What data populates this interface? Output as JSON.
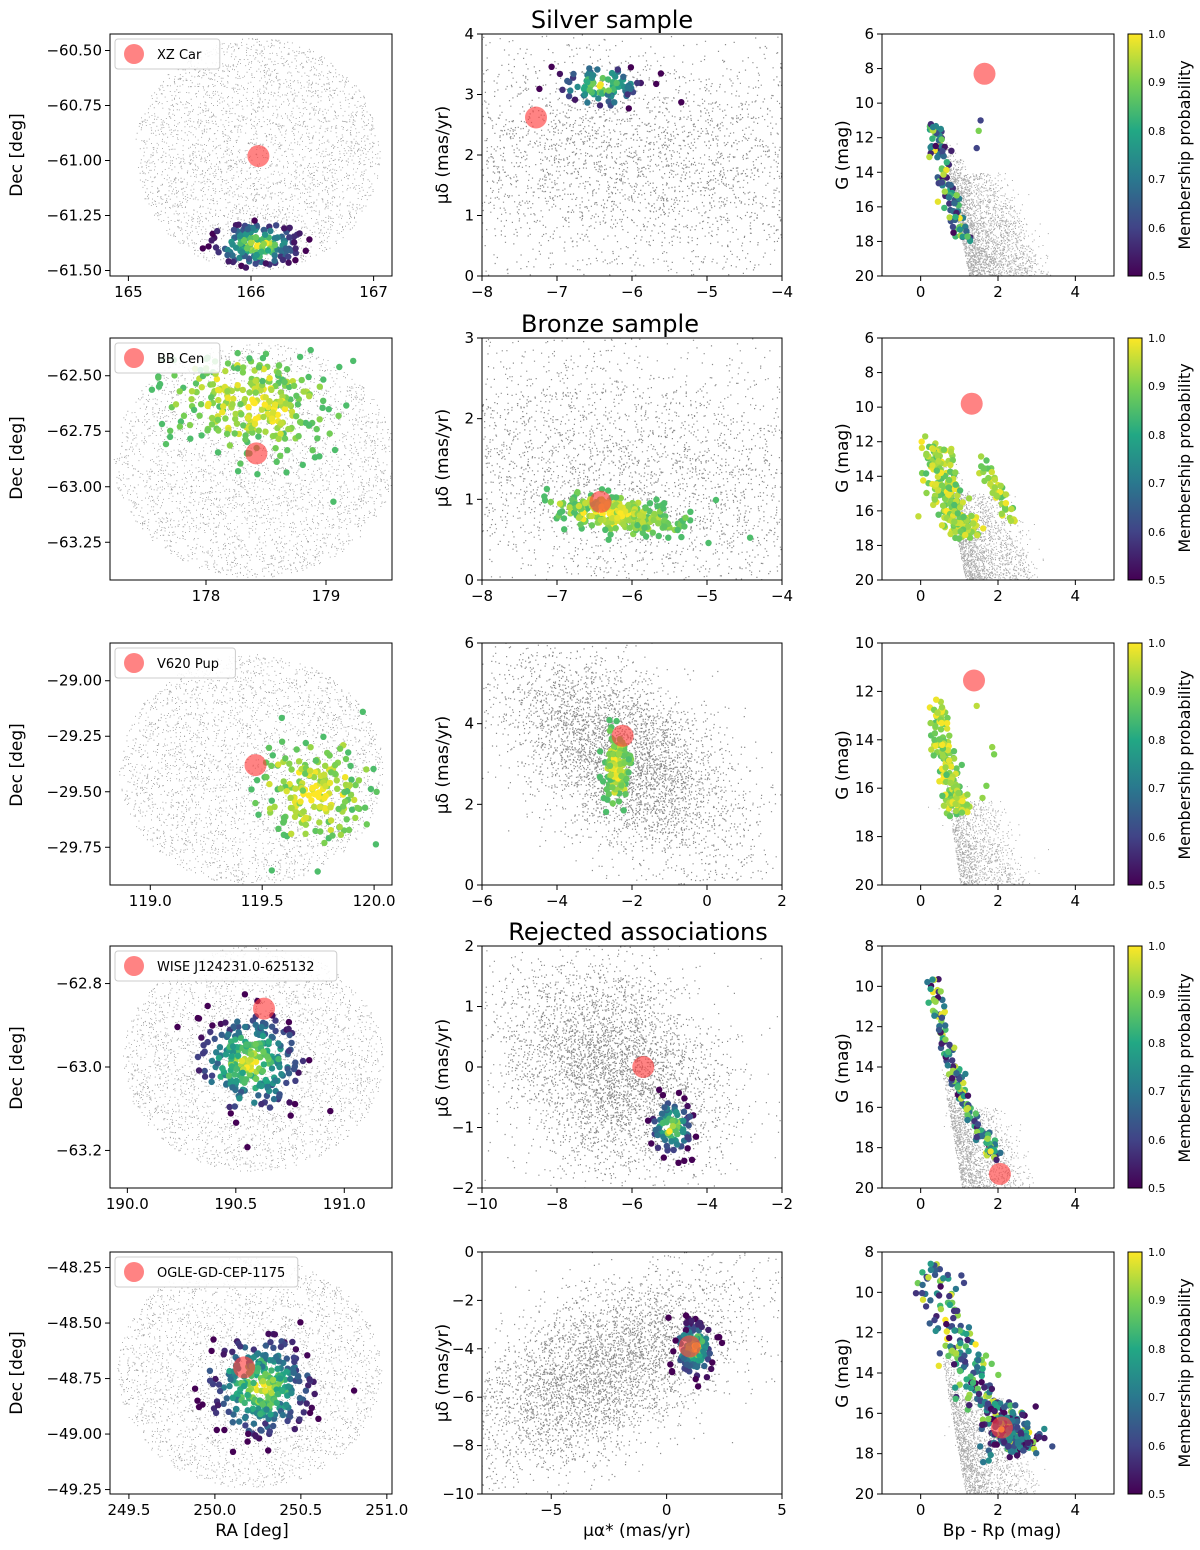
{
  "colorbar": {
    "label": "Membership probability",
    "ticks": [
      "0.5",
      "0.6",
      "0.7",
      "0.8",
      "0.9",
      "1.0"
    ],
    "range": [
      0.5,
      1.0
    ],
    "colormap": [
      "#440154",
      "#414487",
      "#2a788e",
      "#22a884",
      "#7ad151",
      "#fde725"
    ]
  },
  "colors": {
    "field": "#8c8c8c",
    "cepheid": "#ff4040",
    "legend_border": "#cccccc"
  },
  "section_titles": [
    "Silver sample",
    "Bronze sample",
    "Rejected associations"
  ],
  "axis_text": {
    "dec_label": "Dec [deg]",
    "ra_label": "RA [deg]",
    "pmdec_label": "μδ (mas/yr)",
    "pmra_label": "μα* (mas/yr)",
    "g_label": "G (mag)",
    "color_label": "Bp - Rp (mag)"
  },
  "chart_data": [
    {
      "type": "scatter",
      "panel": "sky",
      "legend": "XZ Car",
      "legend_position": "upper-left",
      "xlim": [
        164.85,
        167.15
      ],
      "ylim": [
        -61.525,
        -60.425
      ],
      "xticks": [
        165,
        166,
        167
      ],
      "xticklabels": [
        "165",
        "166",
        "167"
      ],
      "yticks": [
        -60.5,
        -60.75,
        -61.0,
        -61.25,
        -61.5
      ],
      "yticklabels": [
        "−60.50",
        "−60.75",
        "−61.00",
        "−61.25",
        "−61.50"
      ],
      "field_center": [
        166.05,
        -60.97
      ],
      "field_radii": [
        1.0,
        0.53
      ],
      "cepheid": [
        166.06,
        -60.98
      ],
      "members": {
        "center": [
          166.05,
          -61.38
        ],
        "spread": [
          0.18,
          0.05
        ],
        "count": 160,
        "prob_range": [
          0.5,
          1.0
        ],
        "shape": "cluster"
      }
    },
    {
      "type": "scatter",
      "panel": "pm",
      "xlim": [
        -8,
        -4
      ],
      "ylim": [
        0,
        4
      ],
      "xticks": [
        -8,
        -7,
        -6,
        -5,
        -4
      ],
      "xticklabels": [
        "−8",
        "−7",
        "−6",
        "−5",
        "−4"
      ],
      "yticks": [
        0,
        1,
        2,
        3,
        4
      ],
      "yticklabels": [
        "0",
        "1",
        "2",
        "3",
        "4"
      ],
      "field_center": [
        -6.0,
        1.9
      ],
      "field_spread": [
        2.2,
        1.0
      ],
      "field_corr": -0.2,
      "cepheid": [
        -7.28,
        2.62
      ],
      "members": {
        "center": [
          -6.4,
          3.15
        ],
        "spread": [
          0.28,
          0.17
        ],
        "count": 90,
        "prob_range": [
          0.5,
          1.0
        ],
        "shape": "cluster"
      }
    },
    {
      "type": "scatter",
      "panel": "cmd",
      "xlim": [
        -1,
        5
      ],
      "ylim": [
        20,
        6
      ],
      "xticks": [
        0,
        2,
        4
      ],
      "xticklabels": [
        "0",
        "2",
        "4"
      ],
      "yticks": [
        6,
        8,
        10,
        12,
        14,
        16,
        18,
        20
      ],
      "yticklabels": [
        "6",
        "8",
        "10",
        "12",
        "14",
        "16",
        "18",
        "20"
      ],
      "field_bright": 10,
      "cepheid": [
        1.65,
        8.3
      ],
      "members": {
        "seq": [
          [
            0.32,
            11.3
          ],
          [
            0.5,
            13.2
          ],
          [
            0.8,
            15.8
          ],
          [
            1.15,
            18.0
          ]
        ],
        "width": 0.12,
        "count": 110,
        "prob_range": [
          0.5,
          1.0
        ],
        "shape": "sequence",
        "extra": [
          [
            1.5,
            11.6,
            0.9
          ],
          [
            1.55,
            11.0,
            0.6
          ],
          [
            1.45,
            12.6,
            0.6
          ]
        ]
      }
    },
    {
      "type": "scatter",
      "panel": "sky",
      "legend": "BB Cen",
      "legend_position": "upper-left",
      "xlim": [
        177.2,
        179.55
      ],
      "ylim": [
        -63.42,
        -62.33
      ],
      "xticks": [
        178,
        179
      ],
      "xticklabels": [
        "178",
        "179"
      ],
      "yticks": [
        -62.5,
        -62.75,
        -63.0,
        -63.25
      ],
      "yticklabels": [
        "−62.50",
        "−62.75",
        "−63.00",
        "−63.25"
      ],
      "field_center": [
        178.4,
        -62.88
      ],
      "field_radii": [
        1.17,
        0.53
      ],
      "cepheid": [
        178.42,
        -62.85
      ],
      "members": {
        "center": [
          178.4,
          -62.63
        ],
        "spread": [
          0.32,
          0.12
        ],
        "count": 290,
        "prob_range": [
          0.85,
          1.0
        ],
        "shape": "cluster"
      }
    },
    {
      "type": "scatter",
      "panel": "pm",
      "xlim": [
        -8,
        -4
      ],
      "ylim": [
        0,
        3
      ],
      "xticks": [
        -8,
        -7,
        -6,
        -5,
        -4
      ],
      "xticklabels": [
        "−8",
        "−7",
        "−6",
        "−5",
        "−4"
      ],
      "yticks": [
        0,
        1,
        2,
        3
      ],
      "yticklabels": [
        "0",
        "1",
        "2",
        "3"
      ],
      "field_center": [
        -6.0,
        1.3
      ],
      "field_spread": [
        2.2,
        0.85
      ],
      "field_corr": -0.25,
      "cepheid": [
        -6.42,
        0.97
      ],
      "members": {
        "center": [
          -6.2,
          0.82
        ],
        "spread": [
          0.42,
          0.12
        ],
        "count": 300,
        "prob_range": [
          0.85,
          1.0
        ],
        "shape": "cluster",
        "corr": -0.45
      }
    },
    {
      "type": "scatter",
      "panel": "cmd",
      "xlim": [
        -1,
        5
      ],
      "ylim": [
        20,
        6
      ],
      "xticks": [
        0,
        2,
        4
      ],
      "xticklabels": [
        "0",
        "2",
        "4"
      ],
      "yticks": [
        6,
        8,
        10,
        12,
        14,
        16,
        18,
        20
      ],
      "yticklabels": [
        "6",
        "8",
        "10",
        "12",
        "14",
        "16",
        "18",
        "20"
      ],
      "field_bright": 11,
      "cepheid": [
        1.32,
        9.8
      ],
      "members": {
        "seq": [
          [
            0.3,
            11.8
          ],
          [
            0.55,
            14.2
          ],
          [
            0.9,
            16.2
          ],
          [
            1.2,
            17.4
          ]
        ],
        "width": 0.22,
        "count": 230,
        "prob_range": [
          0.85,
          1.0
        ],
        "shape": "sequence",
        "giant": [
          [
            1.6,
            13.0
          ],
          [
            2.3,
            16.5
          ]
        ],
        "giant_count": 45
      }
    },
    {
      "type": "scatter",
      "panel": "sky",
      "legend": "V620 Pup",
      "legend_position": "upper-left",
      "xlim": [
        118.82,
        120.08
      ],
      "ylim": [
        -29.92,
        -28.83
      ],
      "xticks": [
        119.0,
        119.5,
        120.0
      ],
      "xticklabels": [
        "119.0",
        "119.5",
        "120.0"
      ],
      "yticks": [
        -29.0,
        -29.25,
        -29.5,
        -29.75
      ],
      "yticklabels": [
        "−29.00",
        "−29.25",
        "−29.50",
        "−29.75"
      ],
      "field_center": [
        119.45,
        -29.4
      ],
      "field_radii": [
        0.59,
        0.52
      ],
      "cepheid": [
        119.47,
        -29.38
      ],
      "members": {
        "center": [
          119.74,
          -29.5
        ],
        "spread": [
          0.13,
          0.12
        ],
        "count": 190,
        "prob_range": [
          0.85,
          1.0
        ],
        "shape": "cluster"
      }
    },
    {
      "type": "scatter",
      "panel": "pm",
      "xlim": [
        -6,
        2
      ],
      "ylim": [
        0,
        6
      ],
      "xticks": [
        -6,
        -4,
        -2,
        0,
        2
      ],
      "xticklabels": [
        "−6",
        "−4",
        "−2",
        "0",
        "2"
      ],
      "yticks": [
        0,
        2,
        4,
        6
      ],
      "yticklabels": [
        "0",
        "2",
        "4",
        "6"
      ],
      "field_center": [
        -2.3,
        3.2
      ],
      "field_spread": [
        1.6,
        1.3
      ],
      "field_corr": -0.55,
      "cepheid": [
        -2.25,
        3.7
      ],
      "members": {
        "center": [
          -2.42,
          2.9
        ],
        "spread": [
          0.16,
          0.42
        ],
        "count": 150,
        "prob_range": [
          0.85,
          1.0
        ],
        "shape": "cluster"
      }
    },
    {
      "type": "scatter",
      "panel": "cmd",
      "xlim": [
        -1,
        5
      ],
      "ylim": [
        20,
        10
      ],
      "xticks": [
        0,
        2,
        4
      ],
      "xticklabels": [
        "0",
        "2",
        "4"
      ],
      "yticks": [
        10,
        12,
        14,
        16,
        18,
        20
      ],
      "yticklabels": [
        "10",
        "12",
        "14",
        "16",
        "18",
        "20"
      ],
      "field_bright": 12.5,
      "cepheid": [
        1.38,
        11.55
      ],
      "members": {
        "seq": [
          [
            0.45,
            12.5
          ],
          [
            0.6,
            14.5
          ],
          [
            0.85,
            16.3
          ],
          [
            1.0,
            17.0
          ]
        ],
        "width": 0.15,
        "count": 160,
        "prob_range": [
          0.85,
          1.0
        ],
        "shape": "sequence",
        "extra": [
          [
            1.45,
            12.6,
            0.95
          ],
          [
            1.85,
            14.3,
            0.92
          ],
          [
            1.9,
            14.6,
            0.9
          ],
          [
            1.7,
            15.9,
            0.9
          ],
          [
            1.6,
            16.4,
            0.92
          ]
        ]
      }
    },
    {
      "type": "scatter",
      "panel": "sky",
      "legend": "WISE J124231.0-625132",
      "legend_position": "upper-left",
      "xlim": [
        189.92,
        191.22
      ],
      "ylim": [
        -63.29,
        -62.71
      ],
      "xticks": [
        190.0,
        190.5,
        191.0
      ],
      "xticklabels": [
        "190.0",
        "190.5",
        "191.0"
      ],
      "yticks": [
        -62.8,
        -63.0,
        -63.2
      ],
      "yticklabels": [
        "−62.8",
        "−63.0",
        "−63.2"
      ],
      "field_center": [
        190.58,
        -62.98
      ],
      "field_radii": [
        0.6,
        0.27
      ],
      "cepheid": [
        190.63,
        -62.86
      ],
      "members": {
        "center": [
          190.57,
          -62.99
        ],
        "spread": [
          0.12,
          0.06
        ],
        "count": 260,
        "prob_range": [
          0.5,
          1.0
        ],
        "shape": "cluster"
      }
    },
    {
      "type": "scatter",
      "panel": "pm",
      "xlim": [
        -10,
        -2
      ],
      "ylim": [
        -2,
        2
      ],
      "xticks": [
        -10,
        -8,
        -6,
        -4,
        -2
      ],
      "xticklabels": [
        "−10",
        "−8",
        "−6",
        "−4",
        "−2"
      ],
      "yticks": [
        -2,
        -1,
        0,
        1,
        2
      ],
      "yticklabels": [
        "−2",
        "−1",
        "0",
        "1",
        "2"
      ],
      "field_center": [
        -6.6,
        0.0
      ],
      "field_spread": [
        1.5,
        0.9
      ],
      "field_corr": -0.3,
      "cepheid": [
        -5.7,
        0.0
      ],
      "members": {
        "center": [
          -4.95,
          -1.0
        ],
        "spread": [
          0.28,
          0.22
        ],
        "count": 90,
        "prob_range": [
          0.5,
          1.0
        ],
        "shape": "cluster"
      }
    },
    {
      "type": "scatter",
      "panel": "cmd",
      "xlim": [
        -1,
        5
      ],
      "ylim": [
        20,
        8
      ],
      "xticks": [
        0,
        2,
        4
      ],
      "xticklabels": [
        "0",
        "2",
        "4"
      ],
      "yticks": [
        8,
        10,
        12,
        14,
        16,
        18,
        20
      ],
      "yticklabels": [
        "8",
        "10",
        "12",
        "14",
        "16",
        "18",
        "20"
      ],
      "field_bright": 12,
      "cepheid": [
        2.05,
        19.3
      ],
      "members": {
        "seq": [
          [
            0.3,
            9.6
          ],
          [
            0.55,
            12.5
          ],
          [
            1.0,
            15.0
          ],
          [
            1.5,
            17.2
          ],
          [
            2.0,
            18.5
          ]
        ],
        "width": 0.1,
        "count": 150,
        "prob_range": [
          0.5,
          1.0
        ],
        "shape": "sequence"
      }
    },
    {
      "type": "scatter",
      "panel": "sky",
      "legend": "OGLE-GD-CEP-1175",
      "legend_position": "upper-left",
      "xlim": [
        249.39,
        251.03
      ],
      "ylim": [
        -49.27,
        -48.18
      ],
      "xticks": [
        249.5,
        250.0,
        250.5,
        251.0
      ],
      "xticklabels": [
        "249.5",
        "250.0",
        "250.5",
        "251.0"
      ],
      "yticks": [
        -48.25,
        -48.5,
        -48.75,
        -49.0,
        -49.25
      ],
      "yticklabels": [
        "−48.25",
        "−48.50",
        "−48.75",
        "−49.00",
        "−49.25"
      ],
      "field_center": [
        250.2,
        -48.72
      ],
      "field_radii": [
        0.77,
        0.52
      ],
      "cepheid": [
        250.17,
        -48.7
      ],
      "members": {
        "center": [
          250.27,
          -48.79
        ],
        "spread": [
          0.15,
          0.11
        ],
        "count": 290,
        "prob_range": [
          0.5,
          1.0
        ],
        "shape": "cluster"
      }
    },
    {
      "type": "scatter",
      "panel": "pm",
      "xlim": [
        -8,
        5
      ],
      "ylim": [
        -10,
        0
      ],
      "xticks": [
        -5,
        0,
        5
      ],
      "xticklabels": [
        "−5",
        "0",
        "5"
      ],
      "yticks": [
        -10,
        -8,
        -6,
        -4,
        -2,
        0
      ],
      "yticklabels": [
        "−10",
        "−8",
        "−6",
        "−4",
        "−2",
        "0"
      ],
      "field_center": [
        -2.8,
        -4.9
      ],
      "field_spread": [
        3.0,
        2.0
      ],
      "field_corr": 0.55,
      "cepheid": [
        1.0,
        -3.9
      ],
      "members": {
        "center": [
          1.2,
          -4.0
        ],
        "spread": [
          0.42,
          0.55
        ],
        "count": 150,
        "prob_range": [
          0.5,
          1.0
        ],
        "shape": "cluster"
      }
    },
    {
      "type": "scatter",
      "panel": "cmd",
      "xlim": [
        -1,
        5
      ],
      "ylim": [
        20,
        8
      ],
      "xticks": [
        0,
        2,
        4
      ],
      "xticklabels": [
        "0",
        "2",
        "4"
      ],
      "yticks": [
        8,
        10,
        12,
        14,
        16,
        18,
        20
      ],
      "yticklabels": [
        "8",
        "10",
        "12",
        "14",
        "16",
        "18",
        "20"
      ],
      "field_bright": 11,
      "cepheid": [
        2.1,
        16.7
      ],
      "members": {
        "seq": [
          [
            0.3,
            8.7
          ],
          [
            0.8,
            12.0
          ],
          [
            1.5,
            14.8
          ],
          [
            2.3,
            16.8
          ],
          [
            2.6,
            17.8
          ]
        ],
        "width": 0.28,
        "count": 280,
        "prob_range": [
          0.5,
          1.0
        ],
        "shape": "sequence",
        "clump": [
          2.4,
          17.0,
          0.4,
          0.6,
          90
        ]
      }
    }
  ]
}
